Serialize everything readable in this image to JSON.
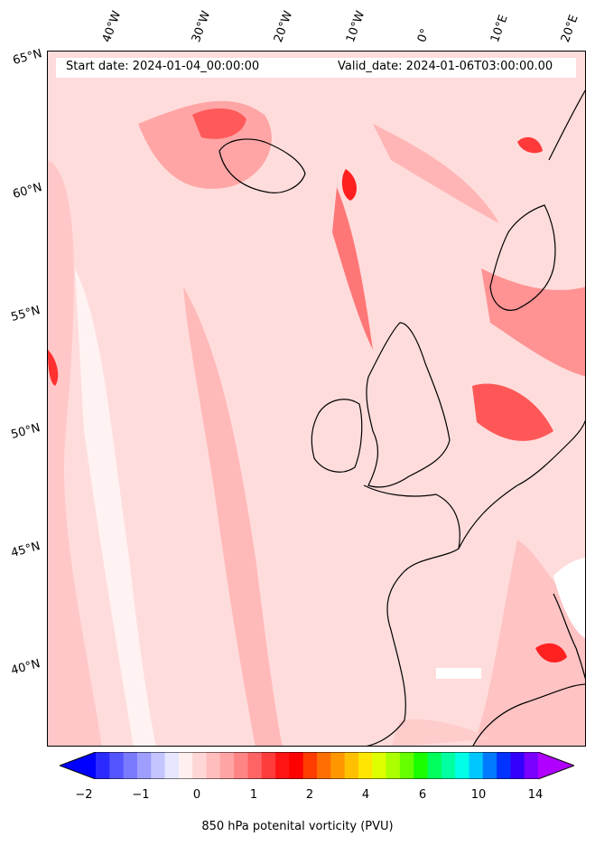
{
  "map": {
    "start_date": "Start date: 2024-01-04_00:00:00",
    "valid_date": "Valid_date: 2024-01-06T03:00:00.00",
    "longitude_labels": [
      "40°W",
      "30°W",
      "20°W",
      "10°W",
      "0°",
      "10°E",
      "20°E"
    ],
    "latitude_labels": [
      "65°N",
      "60°N",
      "55°N",
      "50°N",
      "45°N",
      "40°N"
    ]
  },
  "colorbar": {
    "ticks": [
      "−2",
      "−1",
      "0",
      "1",
      "2",
      "4",
      "6",
      "10",
      "14"
    ],
    "label": "850 hPa potenital vorticity (PVU)",
    "colors": [
      "#0000ff",
      "#2a2aff",
      "#5555ff",
      "#7a7aff",
      "#9e9eff",
      "#c4c4ff",
      "#e6e6ff",
      "#ffefef",
      "#ffd6d6",
      "#ffbdbd",
      "#ffa4a4",
      "#ff8484",
      "#ff6464",
      "#ff3c3c",
      "#ff1414",
      "#ff0000",
      "#ff3c00",
      "#ff6e00",
      "#ff9600",
      "#ffc000",
      "#ffe600",
      "#ddff00",
      "#aaff00",
      "#66ff00",
      "#1aff00",
      "#00ff5a",
      "#00ffa0",
      "#00ffe6",
      "#00c8ff",
      "#007aff",
      "#0033ff",
      "#3300ff",
      "#7a00ff",
      "#b000ff"
    ]
  }
}
